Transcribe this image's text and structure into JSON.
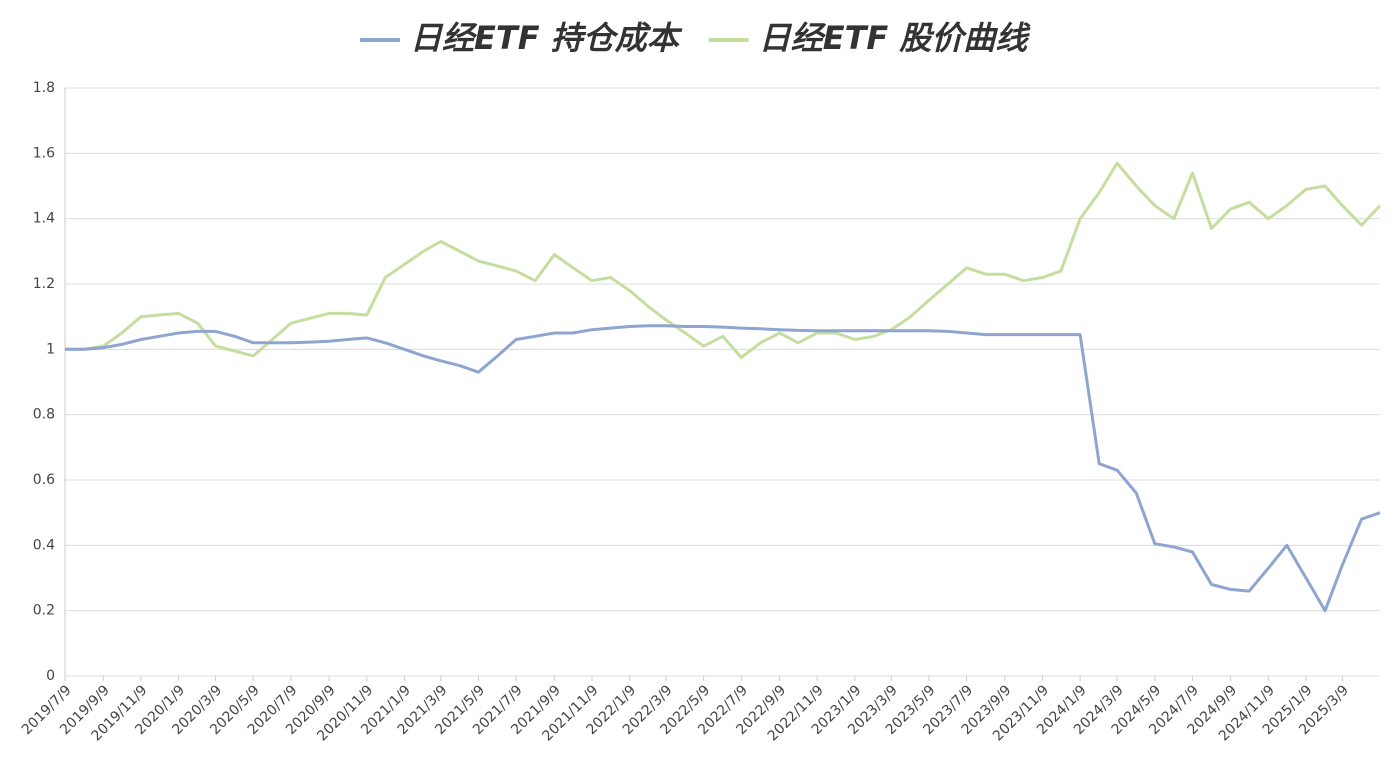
{
  "chart_data": {
    "type": "line",
    "x": [
      "2019/7/9",
      "2019/8/9",
      "2019/9/9",
      "2019/10/9",
      "2019/11/9",
      "2019/12/9",
      "2020/1/9",
      "2020/2/9",
      "2020/3/9",
      "2020/4/9",
      "2020/5/9",
      "2020/6/9",
      "2020/7/9",
      "2020/8/9",
      "2020/9/9",
      "2020/10/9",
      "2020/11/9",
      "2020/12/9",
      "2021/1/9",
      "2021/2/9",
      "2021/3/9",
      "2021/4/9",
      "2021/5/9",
      "2021/6/9",
      "2021/7/9",
      "2021/8/9",
      "2021/9/9",
      "2021/10/9",
      "2021/11/9",
      "2021/12/9",
      "2022/1/9",
      "2022/2/9",
      "2022/3/9",
      "2022/4/9",
      "2022/5/9",
      "2022/6/9",
      "2022/7/9",
      "2022/8/9",
      "2022/9/9",
      "2022/10/9",
      "2022/11/9",
      "2022/12/9",
      "2023/1/9",
      "2023/2/9",
      "2023/3/9",
      "2023/4/9",
      "2023/5/9",
      "2023/6/9",
      "2023/7/9",
      "2023/8/9",
      "2023/9/9",
      "2023/10/9",
      "2023/11/9",
      "2023/12/9",
      "2024/1/9",
      "2024/2/9",
      "2024/3/9",
      "2024/4/9",
      "2024/5/9",
      "2024/6/9",
      "2024/7/9",
      "2024/8/9",
      "2024/9/9",
      "2024/10/9",
      "2024/11/9",
      "2024/12/9",
      "2025/1/9",
      "2025/2/9",
      "2025/3/9",
      "2025/4/9",
      "2025/5/9"
    ],
    "series": [
      {
        "name": "日经ETF 持仓成本",
        "color": "#8ea5cf",
        "values": [
          1.0,
          1.0,
          1.005,
          1.015,
          1.03,
          1.04,
          1.05,
          1.055,
          1.055,
          1.04,
          1.02,
          1.02,
          1.02,
          1.022,
          1.025,
          1.03,
          1.035,
          1.02,
          1.0,
          0.98,
          0.965,
          0.95,
          0.93,
          0.98,
          1.03,
          1.04,
          1.05,
          1.05,
          1.06,
          1.065,
          1.07,
          1.072,
          1.072,
          1.07,
          1.07,
          1.068,
          1.065,
          1.063,
          1.06,
          1.058,
          1.057,
          1.057,
          1.057,
          1.057,
          1.057,
          1.057,
          1.057,
          1.055,
          1.05,
          1.045,
          1.045,
          1.045,
          1.045,
          1.045,
          1.045,
          0.65,
          0.63,
          0.56,
          0.405,
          0.395,
          0.38,
          0.28,
          0.265,
          0.26,
          0.33,
          0.4,
          0.3,
          0.2,
          0.34,
          0.48,
          0.5
        ]
      },
      {
        "name": "日经ETF 股价曲线",
        "color": "#c5dea0",
        "values": [
          1.0,
          1.0,
          1.01,
          1.05,
          1.1,
          1.105,
          1.11,
          1.08,
          1.01,
          0.995,
          0.98,
          1.03,
          1.08,
          1.095,
          1.11,
          1.11,
          1.105,
          1.22,
          1.26,
          1.3,
          1.33,
          1.3,
          1.27,
          1.255,
          1.24,
          1.21,
          1.29,
          1.25,
          1.21,
          1.22,
          1.18,
          1.13,
          1.09,
          1.05,
          1.01,
          1.04,
          0.975,
          1.02,
          1.05,
          1.02,
          1.05,
          1.05,
          1.03,
          1.04,
          1.06,
          1.1,
          1.15,
          1.2,
          1.25,
          1.23,
          1.23,
          1.21,
          1.22,
          1.24,
          1.4,
          1.48,
          1.57,
          1.5,
          1.44,
          1.4,
          1.54,
          1.37,
          1.43,
          1.45,
          1.4,
          1.44,
          1.49,
          1.5,
          1.44,
          1.38,
          1.44
        ]
      }
    ],
    "xlim": [
      "2019/7/9",
      "2025/5/9"
    ],
    "xticks": [
      "2019/7/9",
      "2019/9/9",
      "2019/11/9",
      "2020/1/9",
      "2020/3/9",
      "2020/5/9",
      "2020/7/9",
      "2020/9/9",
      "2020/11/9",
      "2021/1/9",
      "2021/3/9",
      "2021/5/9",
      "2021/7/9",
      "2021/9/9",
      "2021/11/9",
      "2022/1/9",
      "2022/3/9",
      "2022/5/9",
      "2022/7/9",
      "2022/9/9",
      "2022/11/9",
      "2023/1/9",
      "2023/3/9",
      "2023/5/9",
      "2023/7/9",
      "2023/9/9",
      "2023/11/9",
      "2024/1/9",
      "2024/3/9",
      "2024/5/9",
      "2024/7/9",
      "2024/9/9",
      "2024/11/9",
      "2025/1/9",
      "2025/3/9"
    ],
    "ylim": [
      0,
      1.8
    ],
    "yticks": [
      0,
      0.2,
      0.4,
      0.6,
      0.8,
      1,
      1.2,
      1.4,
      1.6,
      1.8
    ],
    "grid": true
  }
}
